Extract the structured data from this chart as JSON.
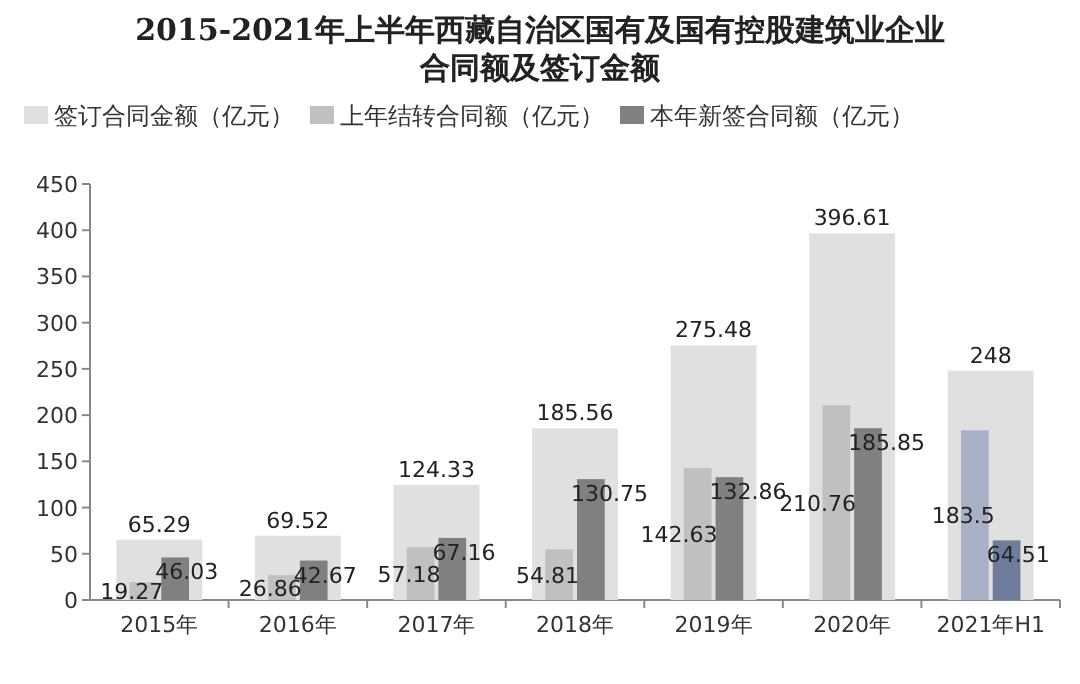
{
  "chart_data": {
    "type": "bar",
    "title": "2015-2021年上半年西藏自治区国有及国有控股建筑业企业合同额及签订金额",
    "categories": [
      "2015年",
      "2016年",
      "2017年",
      "2018年",
      "2019年",
      "2020年",
      "2021年H1"
    ],
    "series": [
      {
        "name": "签订合同金额（亿元）",
        "color": "#e0e0e0",
        "values": [
          65.29,
          69.52,
          124.33,
          185.56,
          275.48,
          396.61,
          248
        ]
      },
      {
        "name": "上年结转合同额（亿元）",
        "color": "#c0c0c0",
        "colors": [
          "#c0c0c0",
          "#c0c0c0",
          "#c0c0c0",
          "#c0c0c0",
          "#c0c0c0",
          "#c0c0c0",
          "#aab0c8"
        ],
        "values": [
          19.27,
          26.86,
          57.18,
          54.81,
          142.63,
          210.76,
          183.5
        ]
      },
      {
        "name": "本年新签合同额（亿元）",
        "color": "#808080",
        "colors": [
          "#808080",
          "#808080",
          "#808080",
          "#808080",
          "#808080",
          "#808080",
          "#707c9c"
        ],
        "values": [
          46.03,
          42.67,
          67.16,
          130.75,
          132.86,
          185.85,
          64.51
        ]
      }
    ],
    "ylim": [
      0,
      450
    ],
    "yticks": [
      0,
      50,
      100,
      150,
      200,
      250,
      300,
      350,
      400,
      450
    ],
    "data_labels": true,
    "legend": "top",
    "grid": false
  }
}
